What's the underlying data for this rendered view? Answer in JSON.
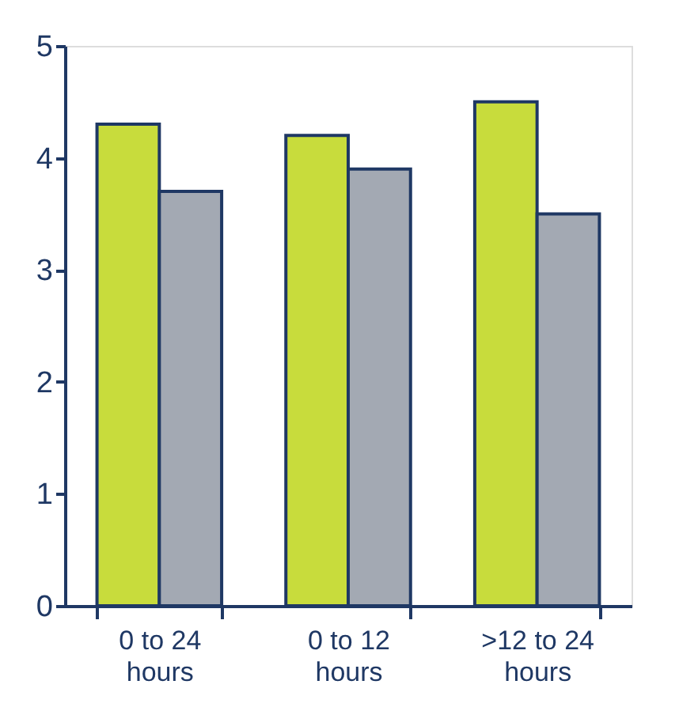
{
  "chart_data": {
    "type": "bar",
    "categories": [
      "0 to 24 hours",
      "0 to 12 hours",
      ">12 to 24 hours"
    ],
    "series": [
      {
        "color": "#c8dc3c",
        "values": [
          4.3,
          4.2,
          4.5
        ]
      },
      {
        "color": "#a3a9b3",
        "values": [
          3.7,
          3.9,
          3.5
        ]
      }
    ],
    "ylim": [
      0,
      5
    ],
    "yticks": [
      0,
      1,
      2,
      3,
      4,
      5
    ],
    "grid": false,
    "legend": false
  }
}
